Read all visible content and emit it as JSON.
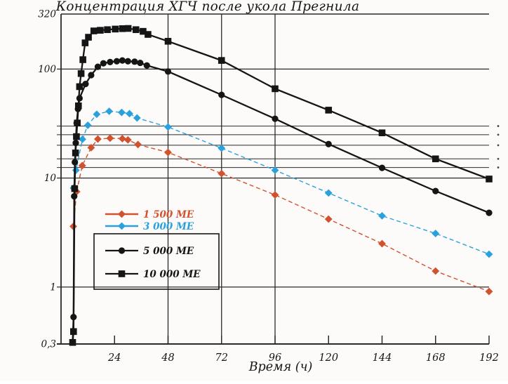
{
  "chart_data": {
    "type": "line",
    "title": "Концентрация ХГЧ после укола Прегнила",
    "xlabel": "Время (ч)",
    "ylabel": "",
    "x_scale": "linear",
    "y_scale": "log",
    "xlim": [
      0,
      192
    ],
    "ylim": [
      0.3,
      320
    ],
    "x_ticks": [
      24,
      48,
      72,
      96,
      120,
      144,
      168,
      192
    ],
    "x_gridlines": [
      48,
      72,
      96
    ],
    "y_ticks": [
      {
        "value": 320,
        "label": "320"
      },
      {
        "value": 100,
        "label": "100"
      },
      {
        "value": 10,
        "label": "10"
      },
      {
        "value": 1,
        "label": "1"
      },
      {
        "value": 0.3,
        "label": "0,3"
      }
    ],
    "y_gridlines_major": [
      100,
      10,
      1
    ],
    "y_gridlines_minor": [
      30,
      25,
      20,
      15,
      12.5
    ],
    "legend_position": "left-middle",
    "series": [
      {
        "name": "1 500 МЕ",
        "color": "#d0522f",
        "marker": "diamond",
        "line": "dashed",
        "points": [
          [
            5.5,
            3.6
          ],
          [
            7,
            7.5
          ],
          [
            9.5,
            13
          ],
          [
            13.5,
            19
          ],
          [
            16.5,
            22.8
          ],
          [
            22,
            23.2
          ],
          [
            27.5,
            23
          ],
          [
            30,
            22.4
          ],
          [
            34.5,
            20.3
          ],
          [
            48,
            17.2
          ],
          [
            72,
            11
          ],
          [
            96,
            7
          ],
          [
            120,
            4.2
          ],
          [
            144,
            2.5
          ],
          [
            168,
            1.4
          ],
          [
            192,
            0.91
          ]
        ]
      },
      {
        "name": "3 000 МЕ",
        "color": "#2aa1dc",
        "marker": "diamond",
        "line": "dashed",
        "points": [
          [
            5.6,
            8.1
          ],
          [
            6.7,
            11.8
          ],
          [
            9.6,
            22.7
          ],
          [
            12,
            30.5
          ],
          [
            16,
            38.5
          ],
          [
            21.6,
            41
          ],
          [
            27.2,
            40
          ],
          [
            30.7,
            39
          ],
          [
            34.1,
            35.6
          ],
          [
            48,
            29.4
          ],
          [
            72,
            18.8
          ],
          [
            96,
            11.8
          ],
          [
            120,
            7.3
          ],
          [
            144,
            4.5
          ],
          [
            168,
            3.1
          ],
          [
            192,
            2.0
          ]
        ]
      },
      {
        "name": "5 000 МЕ",
        "color": "#151515",
        "marker": "circle",
        "line": "solid",
        "points": [
          [
            5.2,
            0.31
          ],
          [
            5.6,
            0.53
          ],
          [
            5.9,
            6.8
          ],
          [
            6.2,
            14
          ],
          [
            6.6,
            21
          ],
          [
            7,
            32
          ],
          [
            7.6,
            43
          ],
          [
            8.3,
            54
          ],
          [
            11,
            73
          ],
          [
            13.5,
            88
          ],
          [
            16.5,
            105
          ],
          [
            19,
            113
          ],
          [
            22,
            116
          ],
          [
            25,
            118
          ],
          [
            27.5,
            120
          ],
          [
            30,
            118
          ],
          [
            33,
            117
          ],
          [
            35.5,
            114
          ],
          [
            38.5,
            108
          ],
          [
            48,
            95
          ],
          [
            72,
            58
          ],
          [
            96,
            35
          ],
          [
            120,
            20.5
          ],
          [
            144,
            12.4
          ],
          [
            168,
            7.6
          ],
          [
            192,
            4.8
          ]
        ]
      },
      {
        "name": "10 000 МЕ",
        "color": "#151515",
        "marker": "square",
        "line": "solid",
        "points": [
          [
            5.2,
            0.31
          ],
          [
            5.6,
            0.39
          ],
          [
            6.1,
            8
          ],
          [
            6.5,
            17
          ],
          [
            6.9,
            24
          ],
          [
            7.3,
            32
          ],
          [
            7.8,
            46
          ],
          [
            8.3,
            69
          ],
          [
            9,
            91
          ],
          [
            9.8,
            122
          ],
          [
            10.8,
            174
          ],
          [
            12.3,
            196
          ],
          [
            14.7,
            224
          ],
          [
            17.6,
            227
          ],
          [
            20.8,
            230
          ],
          [
            24.3,
            233
          ],
          [
            27.5,
            235
          ],
          [
            30.1,
            236
          ],
          [
            33.6,
            230
          ],
          [
            36.8,
            222
          ],
          [
            39,
            208
          ],
          [
            48,
            180
          ],
          [
            72,
            120
          ],
          [
            96,
            66
          ],
          [
            120,
            42
          ],
          [
            144,
            26
          ],
          [
            168,
            15
          ],
          [
            192,
            9.8
          ]
        ]
      }
    ]
  }
}
